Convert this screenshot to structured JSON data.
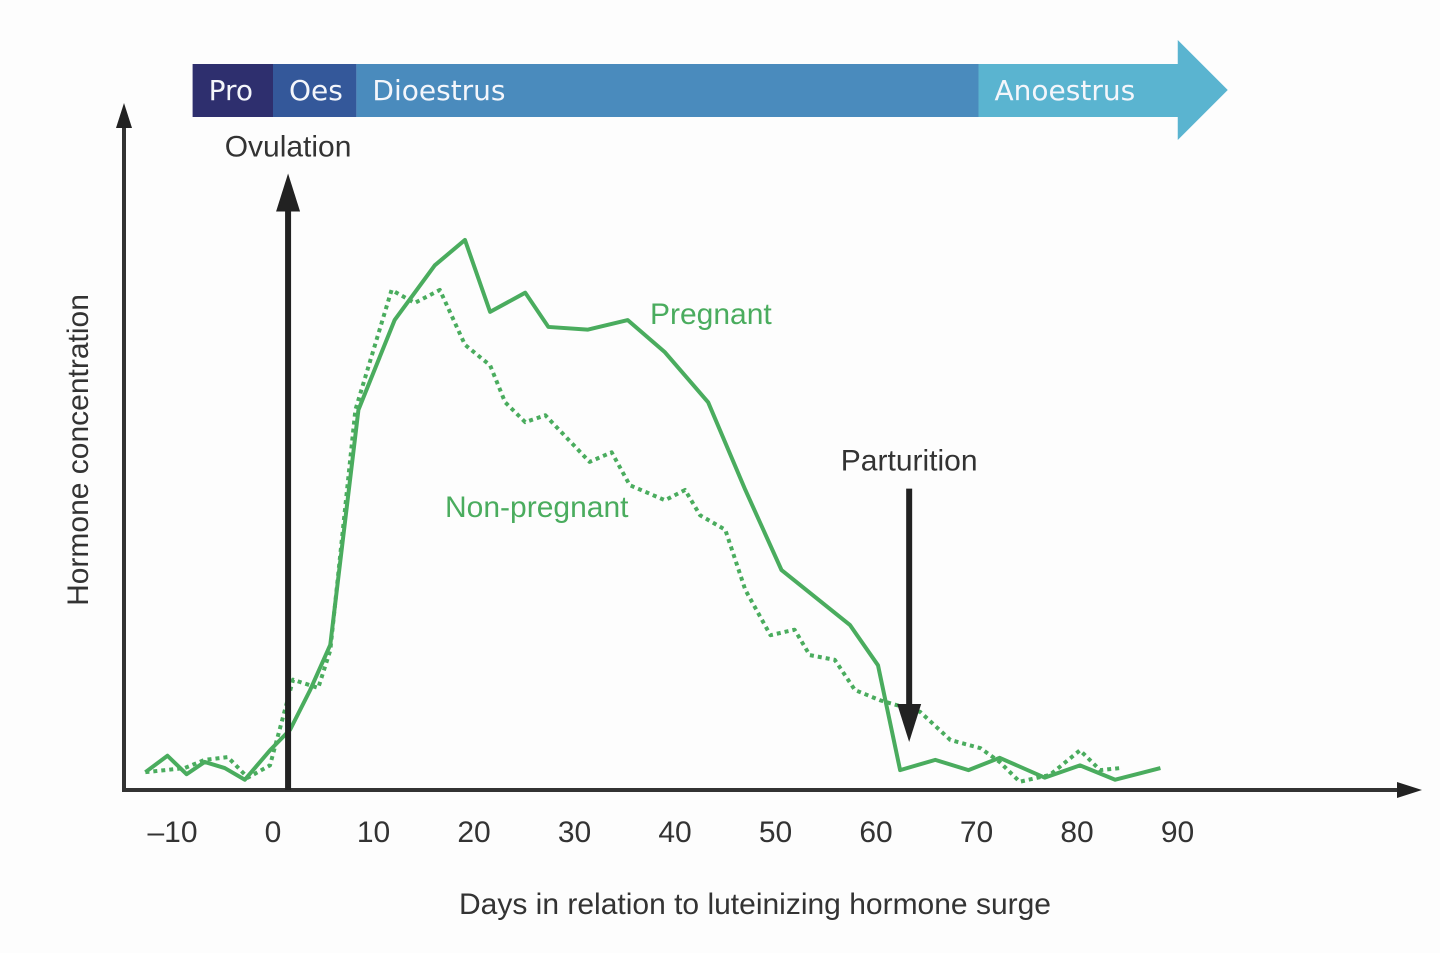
{
  "chart_data": {
    "type": "line",
    "title": "",
    "xlabel": "Days in relation to luteinizing hormone surge",
    "ylabel": "Hormone concentration",
    "xlim": [
      -13,
      113
    ],
    "ylim": [
      0,
      100
    ],
    "x_ticks": [
      -10,
      0,
      10,
      20,
      30,
      40,
      50,
      60,
      70,
      80,
      90
    ],
    "x_tick_labels": [
      "–10",
      "0",
      "10",
      "20",
      "30",
      "40",
      "50",
      "60",
      "70",
      "80",
      "90"
    ],
    "y_ticks": [],
    "grid": false,
    "legend": "none (series labelled directly on the chart)",
    "series": [
      {
        "name": "Pregnant",
        "style": "solid",
        "color": "#4aac5e",
        "x": [
          -12.7,
          -10.5,
          -8.6,
          -6.8,
          -4.8,
          -2.8,
          -0.3,
          1.7,
          3.7,
          5.7,
          8.5,
          12.1,
          16.1,
          19.1,
          21.6,
          25.1,
          27.4,
          31.3,
          35.3,
          39.0,
          43.3,
          47.0,
          50.6,
          57.4,
          60.2,
          62.4,
          65.9,
          69.2,
          72.3,
          76.8,
          80.3,
          83.8,
          88.3
        ],
        "y": [
          2.6,
          5.0,
          2.3,
          4.1,
          3.2,
          1.5,
          5.8,
          8.8,
          14.6,
          21.2,
          55.5,
          68.6,
          76.6,
          80.3,
          69.8,
          72.6,
          67.6,
          67.2,
          68.6,
          63.9,
          56.6,
          43.8,
          32.1,
          24.1,
          18.2,
          2.9,
          4.4,
          2.9,
          4.7,
          1.8,
          3.6,
          1.5,
          3.2
        ]
      },
      {
        "name": "Non-pregnant",
        "style": "dotted",
        "color": "#4aac5e",
        "x": [
          -12.7,
          -8.8,
          -6.8,
          -4.5,
          -2.5,
          -0.3,
          2.0,
          4.5,
          5.7,
          8.2,
          11.8,
          14.1,
          16.6,
          19.1,
          21.6,
          23.1,
          25.1,
          27.1,
          31.5,
          33.7,
          35.5,
          39.0,
          41.0,
          42.5,
          45.0,
          47.0,
          49.5,
          51.9,
          53.4,
          55.9,
          57.9,
          60.4,
          64.4,
          67.4,
          70.4,
          72.3,
          74.3,
          77.3,
          80.3,
          82.3,
          84.3
        ],
        "y": [
          2.6,
          3.2,
          4.4,
          4.8,
          1.8,
          3.6,
          16.1,
          14.9,
          20.4,
          55.5,
          73.0,
          71.1,
          73.0,
          65.0,
          62.0,
          56.6,
          53.7,
          54.7,
          47.9,
          49.3,
          44.5,
          42.3,
          43.8,
          40.1,
          38.0,
          29.2,
          22.6,
          23.4,
          19.7,
          19.0,
          14.6,
          13.1,
          11.4,
          7.3,
          6.1,
          4.1,
          1.2,
          2.2,
          5.8,
          2.9,
          3.2
        ]
      }
    ],
    "annotations": [
      {
        "text": "Ovulation",
        "x": 1.5,
        "arrow": "up",
        "y_from": 0,
        "y_to": 90
      },
      {
        "text": "Parturition",
        "x": 63.3,
        "arrow": "down",
        "y_from": 44,
        "y_to": 7
      }
    ],
    "phases": [
      {
        "label": "Pro",
        "start": -8,
        "end": 0,
        "color": "#2e2f6e"
      },
      {
        "label": "Oes",
        "start": 0,
        "end": 8.3,
        "color": "#34589a"
      },
      {
        "label": "Dioestrus",
        "start": 8.3,
        "end": 70.2,
        "color": "#4a8bbd"
      },
      {
        "label": "Anoestrus",
        "start": 70.2,
        "end": 95,
        "color": "#5ab4d0"
      }
    ]
  }
}
